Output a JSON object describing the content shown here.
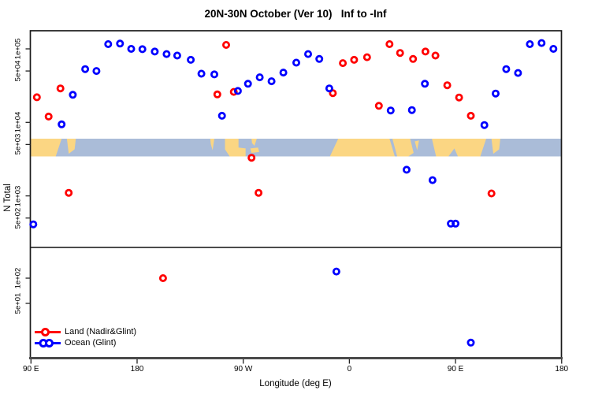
{
  "title": "20N-30N October (Ver 10)   Inf to -Inf",
  "axes": {
    "x": {
      "label": "Longitude (deg E)",
      "ticks": [
        {
          "deg": 90,
          "label": "90 E"
        },
        {
          "deg": 180,
          "label": "180"
        },
        {
          "deg": 270,
          "label": "90 W"
        },
        {
          "deg": 360,
          "label": "0"
        },
        {
          "deg": 450,
          "label": "90 E"
        },
        {
          "deg": 540,
          "label": "180"
        }
      ]
    },
    "y": {
      "label": "N Total",
      "upper_ticks": [
        {
          "value": 100000,
          "label": "1e+05"
        },
        {
          "value": 50000,
          "label": "5e+04"
        },
        {
          "value": 10000,
          "label": "1e+04"
        },
        {
          "value": 5000,
          "label": "5e+03"
        },
        {
          "value": 1000,
          "label": "1e+03"
        },
        {
          "value": 500,
          "label": "5e+02"
        }
      ],
      "lower_ticks": [
        {
          "value": 100,
          "label": "1e+02"
        },
        {
          "value": 50,
          "label": "5e+01"
        }
      ]
    }
  },
  "legend": [
    {
      "label": "Land (Nadir&Glint)",
      "color": "#ff0000"
    },
    {
      "label": "Ocean (Glint)",
      "color": "#0000ff"
    }
  ],
  "colors": {
    "land_marker": "#ff0000",
    "ocean_marker": "#0000ff",
    "map_land": "#fbd683",
    "map_ocean": "#aabcd8",
    "frame": "#1a1a1a",
    "bottom_axis": "#4a4a4a"
  },
  "chart_data": {
    "type": "scatter",
    "title": "20N-30N October (Ver 10)   Inf to -Inf",
    "xlabel": "Longitude (deg E)",
    "ylabel": "N Total",
    "x_range_deg": [
      90,
      540
    ],
    "y_scale": "log10, broken axis: upper panel 2e2..2e5, lower panel ~1e1..2e2",
    "legend_position": "bottom-left",
    "series": [
      {
        "name": "Land (Nadir&Glint)",
        "color": "#ff0000",
        "points": [
          [
            95,
            22000
          ],
          [
            105,
            12000
          ],
          [
            115,
            29000
          ],
          [
            122,
            1100
          ],
          [
            202,
            100
          ],
          [
            248,
            24000
          ],
          [
            255.5,
            113000
          ],
          [
            262,
            26000
          ],
          [
            277,
            3300
          ],
          [
            283,
            1100
          ],
          [
            346,
            25000
          ],
          [
            354.5,
            64000
          ],
          [
            364,
            71000
          ],
          [
            375,
            77000
          ],
          [
            385,
            16800
          ],
          [
            394,
            116000
          ],
          [
            403,
            88000
          ],
          [
            414,
            73000
          ],
          [
            424.5,
            92000
          ],
          [
            433,
            81000
          ],
          [
            443,
            32000
          ],
          [
            453,
            21800
          ],
          [
            463,
            12300
          ],
          [
            480.5,
            1080
          ]
        ]
      },
      {
        "name": "Ocean (Glint)",
        "color": "#0000ff",
        "points": [
          [
            92,
            410
          ],
          [
            116,
            9400
          ],
          [
            125.5,
            23700
          ],
          [
            136,
            53000
          ],
          [
            145.5,
            50000
          ],
          [
            155.5,
            116000
          ],
          [
            165.5,
            118000
          ],
          [
            175,
            100000
          ],
          [
            184.5,
            99000
          ],
          [
            195,
            92000
          ],
          [
            205,
            85000
          ],
          [
            214,
            81000
          ],
          [
            225.5,
            71000
          ],
          [
            234.5,
            46000
          ],
          [
            245.5,
            45000
          ],
          [
            252,
            12300
          ],
          [
            265.5,
            26800
          ],
          [
            274,
            33500
          ],
          [
            284,
            41000
          ],
          [
            294,
            36300
          ],
          [
            304,
            47600
          ],
          [
            315,
            65000
          ],
          [
            325,
            85000
          ],
          [
            334.5,
            73000
          ],
          [
            343,
            29000
          ],
          [
            349,
            120
          ],
          [
            395,
            14500
          ],
          [
            408.5,
            2270
          ],
          [
            413,
            14700
          ],
          [
            424,
            33500
          ],
          [
            430.5,
            1640
          ],
          [
            446,
            420
          ],
          [
            450,
            420
          ],
          [
            463,
            17
          ],
          [
            474.5,
            9200
          ],
          [
            484,
            24700
          ],
          [
            493,
            53000
          ],
          [
            503,
            47000
          ],
          [
            513,
            116000
          ],
          [
            523,
            120000
          ],
          [
            533,
            100000
          ]
        ]
      }
    ],
    "map_band": {
      "description": "20N-30N world coastline strip drawn across plot at ~5e3 level",
      "land_polys_deg_t": [
        [
          [
            90,
            0
          ],
          [
            116,
            0
          ],
          [
            111,
            1
          ],
          [
            90,
            1
          ]
        ],
        [
          [
            120.5,
            0
          ],
          [
            128,
            0
          ],
          [
            127,
            0.6
          ],
          [
            122,
            0.85
          ]
        ],
        [
          [
            242,
            0
          ],
          [
            245.5,
            0
          ],
          [
            244,
            0.65
          ],
          [
            242.5,
            0.3
          ]
        ],
        [
          [
            254.5,
            0
          ],
          [
            266,
            0
          ],
          [
            266,
            0.5
          ],
          [
            272,
            0.55
          ],
          [
            272,
            1
          ],
          [
            258.5,
            1
          ],
          [
            254.5,
            0.6
          ]
        ],
        [
          [
            277,
            0
          ],
          [
            281.5,
            0
          ],
          [
            279.5,
            0.4
          ],
          [
            277.5,
            0.25
          ]
        ],
        [
          [
            276,
            0.55
          ],
          [
            282.5,
            0.5
          ],
          [
            283.5,
            0.75
          ],
          [
            277,
            0.8
          ]
        ],
        [
          [
            350.5,
            0
          ],
          [
            394,
            0
          ],
          [
            398.5,
            1
          ],
          [
            343.5,
            1
          ]
        ],
        [
          [
            396.5,
            0
          ],
          [
            411.5,
            0
          ],
          [
            414.5,
            0.8
          ],
          [
            410,
            1
          ],
          [
            400.5,
            1
          ]
        ],
        [
          [
            415.5,
            0.15
          ],
          [
            419,
            0.1
          ],
          [
            417.5,
            0.65
          ]
        ],
        [
          [
            430,
            0
          ],
          [
            476,
            0
          ],
          [
            471,
            1
          ],
          [
            452,
            1
          ],
          [
            449,
            0.55
          ],
          [
            444,
            1
          ],
          [
            433.5,
            1
          ]
        ],
        [
          [
            480.5,
            0
          ],
          [
            488,
            0
          ],
          [
            487,
            0.6
          ],
          [
            482,
            0.85
          ]
        ]
      ]
    }
  }
}
